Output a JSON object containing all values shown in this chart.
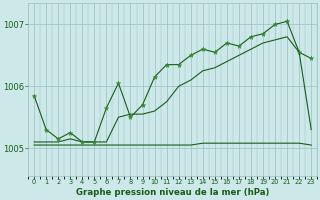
{
  "title": "Graphe pression niveau de la mer (hPa)",
  "x_labels": [
    "0",
    "1",
    "2",
    "3",
    "4",
    "5",
    "6",
    "7",
    "8",
    "9",
    "10",
    "11",
    "12",
    "13",
    "14",
    "15",
    "16",
    "17",
    "18",
    "19",
    "20",
    "21",
    "22",
    "23"
  ],
  "ylim": [
    1004.55,
    1007.35
  ],
  "yticks": [
    1005,
    1006,
    1007
  ],
  "bg_color": "#cce8e8",
  "grid_color": "#9bbfbf",
  "line_color": "#1a5c1a",
  "marker_color": "#2d8c2d",
  "series_zigzag": [
    1005.85,
    1005.3,
    1005.15,
    1005.25,
    1005.1,
    1005.1,
    1005.65,
    1006.05,
    1005.5,
    1005.7,
    1006.15,
    1006.35,
    1006.35,
    1006.5,
    1006.6,
    1006.55,
    1006.7,
    1006.65,
    1006.8,
    1006.85,
    1007.0,
    1007.05,
    1006.55,
    1006.45
  ],
  "series_smooth": [
    1005.1,
    1005.1,
    1005.1,
    1005.15,
    1005.1,
    1005.1,
    1005.1,
    1005.5,
    1005.55,
    1005.55,
    1005.6,
    1005.75,
    1006.0,
    1006.1,
    1006.25,
    1006.3,
    1006.4,
    1006.5,
    1006.6,
    1006.7,
    1006.75,
    1006.8,
    1006.55,
    1005.3
  ],
  "series_flat": [
    1005.05,
    1005.05,
    1005.05,
    1005.05,
    1005.05,
    1005.05,
    1005.05,
    1005.05,
    1005.05,
    1005.05,
    1005.05,
    1005.05,
    1005.05,
    1005.05,
    1005.08,
    1005.08,
    1005.08,
    1005.08,
    1005.08,
    1005.08,
    1005.08,
    1005.08,
    1005.08,
    1005.05
  ]
}
